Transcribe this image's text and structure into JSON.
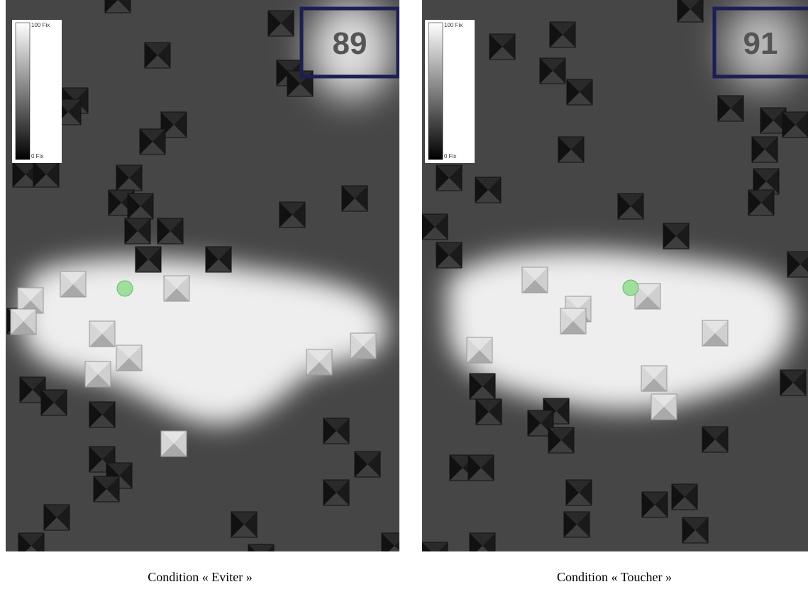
{
  "panels": [
    {
      "score": 89,
      "legend": {
        "max": "100 Fix",
        "min": "0 Fix"
      },
      "caption": "Condition « Eviter »"
    },
    {
      "score": 91,
      "legend": {
        "max": "100 Fix",
        "min": "0 Fix"
      },
      "caption": "Condition « Toucher »"
    }
  ]
}
